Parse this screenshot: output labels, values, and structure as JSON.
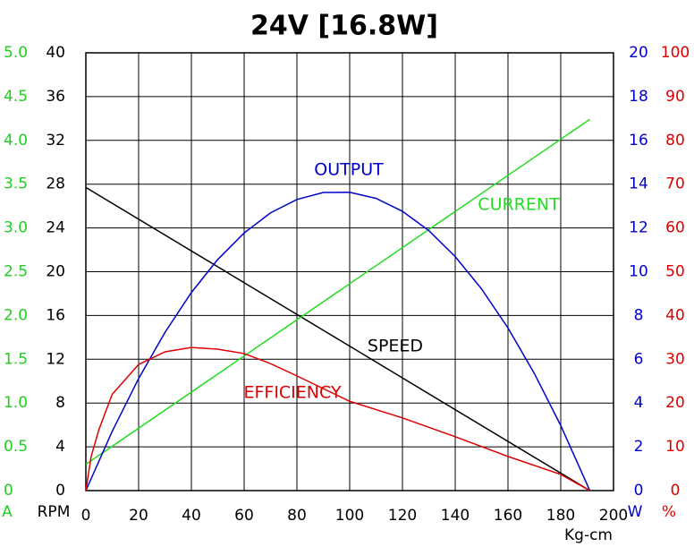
{
  "chart_data": {
    "type": "line",
    "title": "24V [16.8W]",
    "xlabel": "Kg-cm",
    "xlim": [
      0,
      200
    ],
    "xticks": [
      0,
      20,
      40,
      60,
      80,
      100,
      120,
      140,
      160,
      180,
      200
    ],
    "grid": true,
    "axes": {
      "current": {
        "label": "A",
        "color": "#22cc22",
        "lim": [
          0,
          5
        ],
        "ticks": [
          0,
          0.5,
          {
            "value": 1,
            "label": "1.0"
          },
          1.5,
          {
            "value": 2,
            "label": "2.0"
          },
          2.5,
          {
            "value": 3,
            "label": "3.0"
          },
          3.5,
          {
            "value": 4,
            "label": "4.0"
          },
          4.5,
          {
            "value": 5,
            "label": "5.0"
          }
        ]
      },
      "rpm": {
        "label": "RPM",
        "color": "#000000",
        "lim": [
          0,
          40
        ],
        "ticks": [
          0,
          4,
          8,
          12,
          16,
          20,
          24,
          28,
          32,
          36,
          40
        ]
      },
      "output": {
        "label": "W",
        "color": "#0000cc",
        "lim": [
          0,
          20
        ],
        "ticks": [
          0,
          2,
          4,
          6,
          8,
          10,
          12,
          14,
          16,
          18,
          20
        ]
      },
      "efficiency": {
        "label": "%",
        "color": "#dd0000",
        "lim": [
          0,
          100
        ],
        "ticks": [
          0,
          10,
          20,
          30,
          40,
          50,
          60,
          70,
          80,
          90,
          100
        ]
      }
    },
    "series": [
      {
        "name": "SPEED",
        "color": "#000000",
        "axis": "rpm",
        "x": [
          0,
          191
        ],
        "values": [
          27.7,
          0
        ]
      },
      {
        "name": "CURRENT",
        "color": "#22dd22",
        "axis": "current",
        "x": [
          0,
          191
        ],
        "values": [
          0.3,
          4.24
        ]
      },
      {
        "name": "OUTPUT",
        "color": "#0000cc",
        "axis": "output",
        "x": [
          0,
          10,
          20,
          30,
          40,
          50,
          60,
          70,
          80,
          90,
          100,
          110,
          120,
          130,
          140,
          150,
          160,
          170,
          180,
          190,
          191
        ],
        "values": [
          0,
          2.71,
          5.12,
          7.23,
          9.05,
          10.56,
          11.77,
          12.69,
          13.3,
          13.62,
          13.63,
          13.35,
          12.76,
          11.88,
          10.69,
          9.21,
          7.43,
          5.35,
          2.97,
          0.28,
          0
        ]
      },
      {
        "name": "EFFICIENCY",
        "color": "#dd0000",
        "axis": "efficiency",
        "x": [
          0,
          2,
          5,
          10,
          20,
          30,
          40,
          50,
          60,
          70,
          80,
          100,
          120,
          140,
          160,
          180,
          191
        ],
        "values": [
          0,
          7.8,
          14,
          22,
          28.8,
          31.7,
          32.7,
          32.3,
          31.3,
          29,
          26.2,
          20.4,
          16.6,
          12.3,
          7.8,
          3.7,
          0
        ]
      }
    ]
  }
}
